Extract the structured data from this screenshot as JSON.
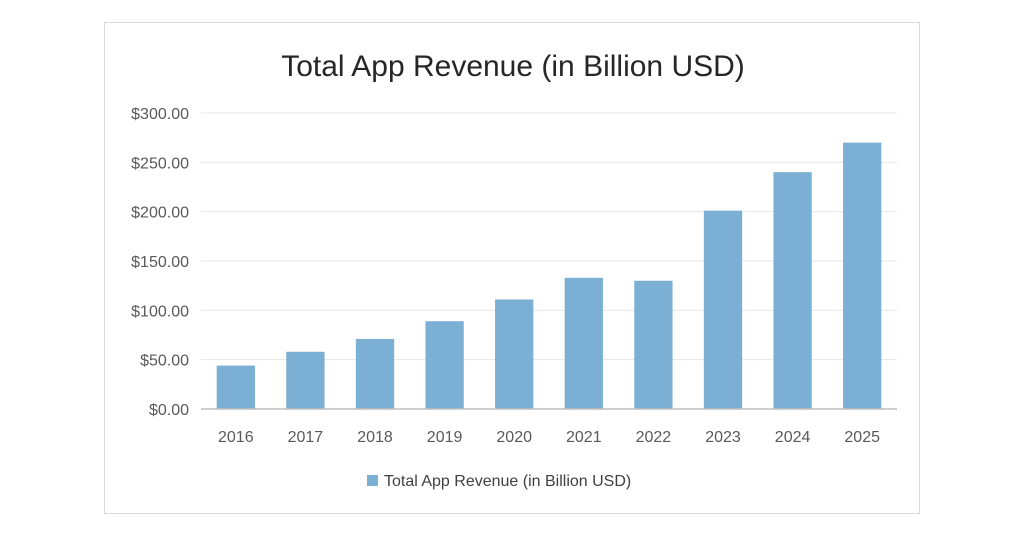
{
  "chart_data": {
    "type": "bar",
    "title": "Total App Revenue (in Billion USD)",
    "xlabel": "",
    "ylabel": "",
    "categories": [
      "2016",
      "2017",
      "2018",
      "2019",
      "2020",
      "2021",
      "2022",
      "2023",
      "2024",
      "2025"
    ],
    "series": [
      {
        "name": "Total App Revenue (in Billion USD)",
        "values": [
          44,
          58,
          71,
          89,
          111,
          133,
          130,
          201,
          240,
          270
        ],
        "color": "#7bafd4"
      }
    ],
    "ylim": [
      0,
      300
    ],
    "yticks": [
      0,
      50,
      100,
      150,
      200,
      250,
      300
    ],
    "ytick_labels": [
      "$0.00",
      "$50.00",
      "$100.00",
      "$150.00",
      "$200.00",
      "$250.00",
      "$300.00"
    ],
    "grid": true,
    "legend_position": "bottom",
    "gridline_color": "#e6e6e6",
    "axis_color": "#bfbfbf"
  }
}
